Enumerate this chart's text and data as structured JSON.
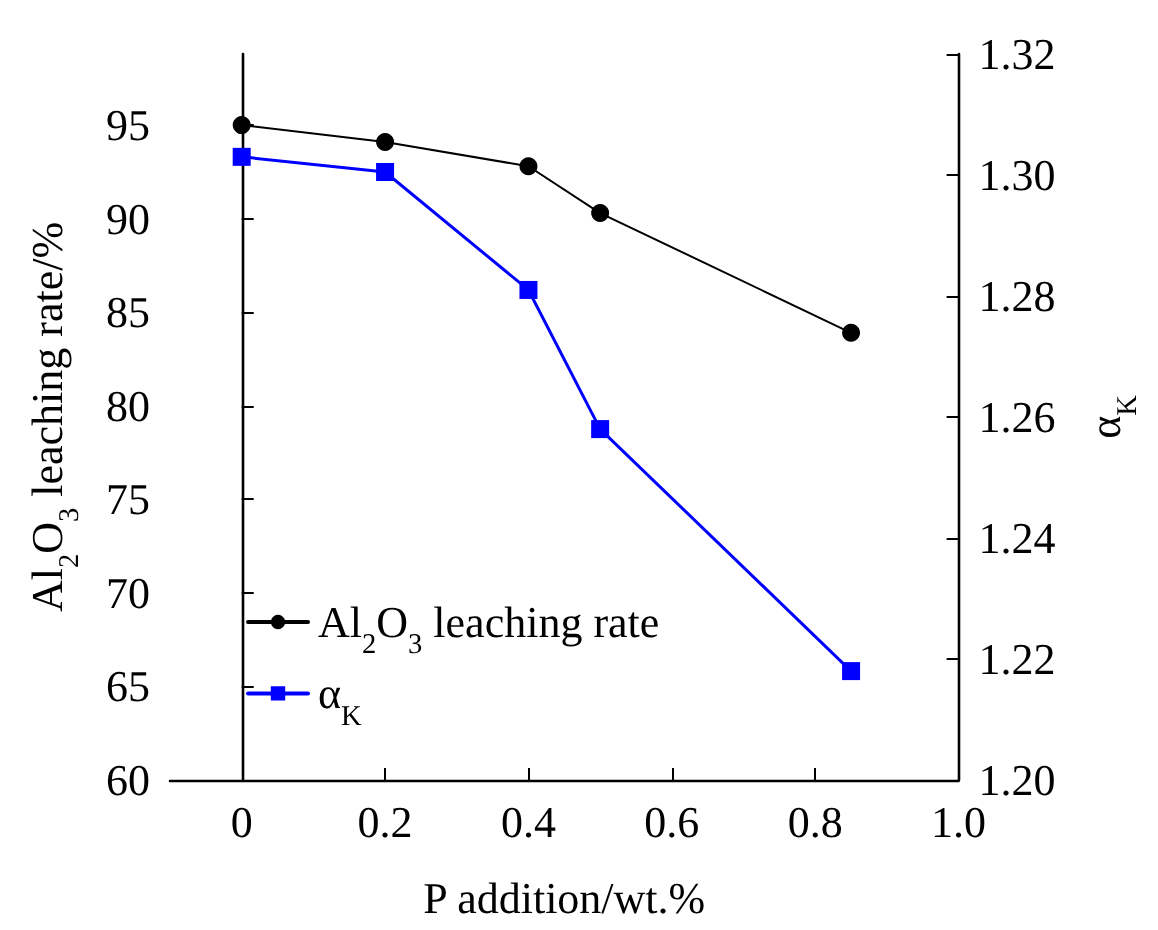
{
  "chart_data": {
    "type": "line",
    "xlabel": "P addition/wt.%",
    "ylabel": "Al$_{2}$O$_{3}$ leaching rate/%",
    "y2label": "α$_{K}$",
    "x": [
      0,
      0.2,
      0.4,
      0.5,
      0.85
    ],
    "series": [
      {
        "name": "Al$_{2}$O$_{3}$ leaching rate",
        "color": "#000000",
        "marker": "circle",
        "values": [
          95.0,
          94.1,
          92.8,
          90.3,
          83.9
        ]
      },
      {
        "name": "α$_{K}$",
        "color": "#0000ff",
        "marker": "square",
        "axis": "y2",
        "values": [
          1.303,
          1.3005,
          1.281,
          1.258,
          1.218
        ]
      }
    ],
    "xlim": [
      -0.1,
      1.0
    ],
    "xticks": [
      {
        "value": 0,
        "label": "0"
      },
      0.2,
      0.4,
      0.6,
      0.8,
      {
        "value": 1.0,
        "label": "1.0"
      }
    ],
    "ylim": [
      60,
      98.8
    ],
    "yticks": [
      60,
      65,
      70,
      75,
      80,
      85,
      90,
      95
    ],
    "y2lim": [
      1.2,
      1.32
    ],
    "y2ticks": [
      {
        "value": 1.2,
        "label": "1.20"
      },
      {
        "value": 1.22,
        "label": "1.22"
      },
      {
        "value": 1.24,
        "label": "1.24"
      },
      {
        "value": 1.26,
        "label": "1.26"
      },
      {
        "value": 1.28,
        "label": "1.28"
      },
      {
        "value": 1.3,
        "label": "1.30"
      },
      {
        "value": 1.32,
        "label": "1.32"
      }
    ],
    "grid": false,
    "legend": "left",
    "line_style": "solid"
  }
}
